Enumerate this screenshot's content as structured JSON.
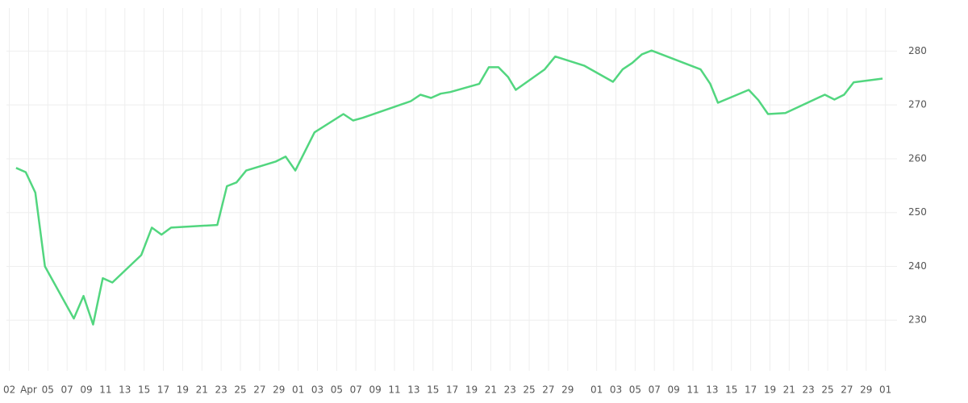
{
  "chart_data": {
    "type": "line",
    "color": "#52d67f",
    "grid": true,
    "x": [
      0.7,
      1.7,
      2.7,
      3.7,
      6.7,
      7.7,
      8.7,
      9.7,
      10.7,
      13.7,
      14.8,
      15.8,
      16.8,
      21.6,
      22.6,
      23.6,
      24.6,
      27.7,
      28.7,
      29.7,
      31.7,
      34.7,
      35.7,
      36.7,
      41.7,
      42.7,
      43.8,
      44.8,
      45.8,
      48.8,
      49.8,
      50.8,
      51.8,
      52.6,
      55.6,
      56.7,
      59.7,
      62.7,
      63.7,
      64.7,
      65.7,
      66.7,
      71.8,
      72.8,
      73.6,
      76.8,
      77.8,
      78.8,
      80.6,
      84.7,
      85.7,
      86.7,
      87.7,
      90.7
    ],
    "values": [
      258.3,
      257.5,
      253.7,
      240.0,
      230.3,
      234.5,
      229.2,
      237.8,
      237.0,
      242.1,
      247.2,
      245.9,
      247.2,
      247.7,
      254.9,
      255.6,
      257.8,
      259.5,
      260.4,
      257.8,
      264.9,
      268.3,
      267.1,
      267.6,
      270.7,
      271.9,
      271.3,
      272.1,
      272.4,
      273.9,
      277.0,
      277.0,
      275.2,
      272.8,
      276.6,
      279.0,
      277.3,
      274.3,
      276.6,
      277.8,
      279.4,
      280.1,
      276.6,
      273.9,
      270.4,
      272.8,
      270.9,
      268.3,
      268.5,
      271.9,
      271.0,
      271.9,
      274.2,
      274.9
    ],
    "xlim": [
      -0.3,
      92.2
    ],
    "xticks": [
      {
        "value": 0,
        "label": "02"
      },
      {
        "value": 2,
        "label": "Apr"
      },
      {
        "value": 4,
        "label": "05"
      },
      {
        "value": 6,
        "label": "07"
      },
      {
        "value": 8,
        "label": "09"
      },
      {
        "value": 10,
        "label": "11"
      },
      {
        "value": 12,
        "label": "13"
      },
      {
        "value": 14,
        "label": "15"
      },
      {
        "value": 16,
        "label": "17"
      },
      {
        "value": 18,
        "label": "19"
      },
      {
        "value": 20,
        "label": "21"
      },
      {
        "value": 22,
        "label": "23"
      },
      {
        "value": 24,
        "label": "25"
      },
      {
        "value": 26,
        "label": "27"
      },
      {
        "value": 28,
        "label": "29"
      },
      {
        "value": 30,
        "label": "01"
      },
      {
        "value": 32,
        "label": "03"
      },
      {
        "value": 34,
        "label": "05"
      },
      {
        "value": 36,
        "label": "07"
      },
      {
        "value": 38,
        "label": "09"
      },
      {
        "value": 40,
        "label": "11"
      },
      {
        "value": 42,
        "label": "13"
      },
      {
        "value": 44,
        "label": "15"
      },
      {
        "value": 46,
        "label": "17"
      },
      {
        "value": 48,
        "label": "19"
      },
      {
        "value": 50,
        "label": "21"
      },
      {
        "value": 52,
        "label": "23"
      },
      {
        "value": 54,
        "label": "25"
      },
      {
        "value": 56,
        "label": "27"
      },
      {
        "value": 58,
        "label": "29"
      },
      {
        "value": 61,
        "label": "01"
      },
      {
        "value": 63,
        "label": "03"
      },
      {
        "value": 65,
        "label": "05"
      },
      {
        "value": 67,
        "label": "07"
      },
      {
        "value": 69,
        "label": "09"
      },
      {
        "value": 71,
        "label": "11"
      },
      {
        "value": 73,
        "label": "13"
      },
      {
        "value": 75,
        "label": "15"
      },
      {
        "value": 77,
        "label": "17"
      },
      {
        "value": 79,
        "label": "19"
      },
      {
        "value": 81,
        "label": "21"
      },
      {
        "value": 83,
        "label": "23"
      },
      {
        "value": 85,
        "label": "25"
      },
      {
        "value": 87,
        "label": "27"
      },
      {
        "value": 89,
        "label": "29"
      },
      {
        "value": 91,
        "label": "01"
      }
    ],
    "ylim": [
      220.6,
      288
    ],
    "yticks": [
      230,
      240,
      250,
      260,
      270,
      280
    ]
  }
}
